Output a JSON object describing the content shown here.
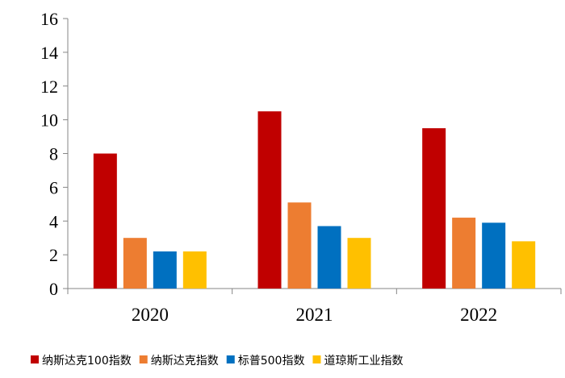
{
  "chart_data": {
    "type": "bar",
    "categories": [
      "2020",
      "2021",
      "2022"
    ],
    "series": [
      {
        "name": "纳斯达克100指数",
        "color": "#C00000",
        "values": [
          8.0,
          10.5,
          9.5
        ]
      },
      {
        "name": "纳斯达克指数",
        "color": "#ED7D31",
        "values": [
          3.0,
          5.1,
          4.2
        ]
      },
      {
        "name": "标普500指数",
        "color": "#0070C0",
        "values": [
          2.2,
          3.7,
          3.9
        ]
      },
      {
        "name": "道琼斯工业指数",
        "color": "#FFC000",
        "values": [
          2.2,
          3.0,
          2.8
        ]
      }
    ],
    "ylim": [
      0,
      16
    ],
    "yticks": [
      0,
      2,
      4,
      6,
      8,
      10,
      12,
      14,
      16
    ],
    "ytick_labels": [
      "0",
      "2",
      "4",
      "6",
      "8",
      "10",
      "12",
      "14",
      "16"
    ],
    "grid": false,
    "legend_position": "bottom",
    "title": "",
    "xlabel": "",
    "ylabel": ""
  }
}
